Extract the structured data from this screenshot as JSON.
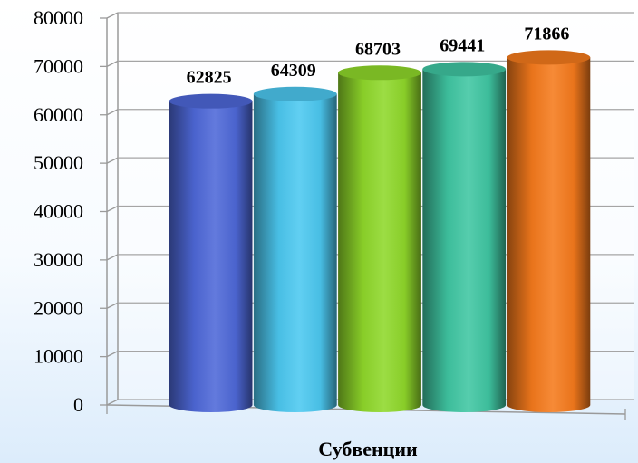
{
  "chart_data": {
    "type": "bar",
    "subtype": "3d-cylinder",
    "categories": [
      ""
    ],
    "series": [
      {
        "values": [
          62825
        ],
        "color": "#4e68d8"
      },
      {
        "values": [
          64309
        ],
        "color": "#4cc8f0"
      },
      {
        "values": [
          68703
        ],
        "color": "#8fd82a"
      },
      {
        "values": [
          69441
        ],
        "color": "#3fc6a2"
      },
      {
        "values": [
          71866
        ],
        "color": "#f57a1c"
      }
    ],
    "data_labels": [
      "62825",
      "64309",
      "68703",
      "69441",
      "71866"
    ],
    "title": "",
    "xlabel": "Субвенции",
    "ylabel": "",
    "ylim": [
      0,
      80000
    ],
    "yticks": [
      "0",
      "10000",
      "20000",
      "30000",
      "40000",
      "50000",
      "60000",
      "70000",
      "80000"
    ],
    "grid": true,
    "legend": "none"
  }
}
